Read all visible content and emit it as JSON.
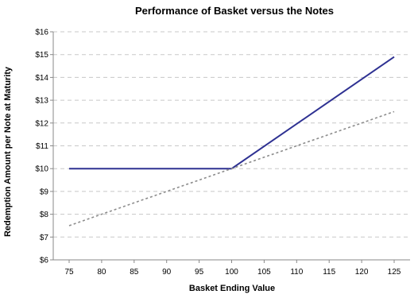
{
  "chart_data": {
    "type": "line",
    "title": "Performance of Basket versus the Notes",
    "xlabel": "Basket Ending Value",
    "ylabel": "Redemption Amount per Note at Maturity",
    "x_ticks": [
      "75",
      "80",
      "85",
      "90",
      "95",
      "100",
      "105",
      "110",
      "115",
      "120",
      "125"
    ],
    "y_ticks": [
      "$6",
      "$7",
      "$8",
      "$9",
      "$10",
      "$11",
      "$12",
      "$13",
      "$14",
      "$15",
      "$16"
    ],
    "xlim": [
      75,
      125
    ],
    "ylim": [
      6,
      16
    ],
    "grid": "horizontal dashed",
    "legend": "none",
    "series": [
      {
        "style": "solid",
        "color": "#2e3192",
        "points": [
          [
            75,
            10
          ],
          [
            100,
            10
          ],
          [
            125,
            14.9
          ]
        ]
      },
      {
        "style": "dotted",
        "color": "#8c8c8c",
        "points": [
          [
            75,
            7.5
          ],
          [
            125,
            12.5
          ]
        ]
      }
    ]
  }
}
